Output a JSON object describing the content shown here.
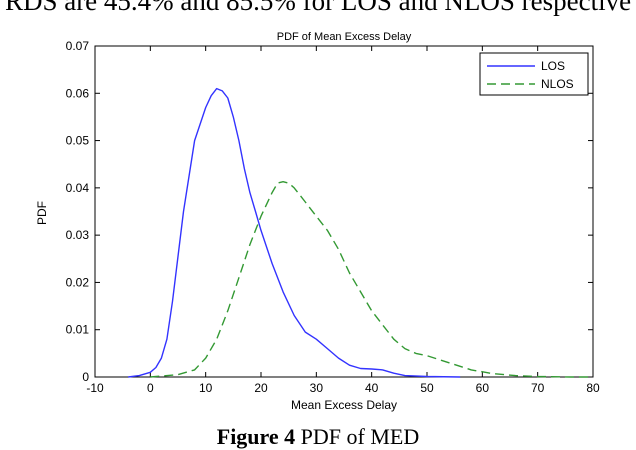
{
  "header_fragment": "RDS are 45.4% and 85.5% for LOS and NLOS respective",
  "caption": {
    "label": "Figure 4",
    "text": " PDF of MED"
  },
  "colors": {
    "los": "#3333ff",
    "nlos": "#339933",
    "axis": "#000000"
  },
  "chart_data": {
    "type": "line",
    "title": "PDF of Mean Excess Delay",
    "xlabel": "Mean Excess Delay",
    "ylabel": "PDF",
    "xlim": [
      -10,
      80
    ],
    "ylim": [
      0,
      0.07
    ],
    "x_ticks": [
      "-10",
      "0",
      "10",
      "20",
      "30",
      "40",
      "50",
      "60",
      "70",
      "80"
    ],
    "y_ticks": [
      "0",
      "0.01",
      "0.02",
      "0.03",
      "0.04",
      "0.05",
      "0.06",
      "0.07"
    ],
    "legend_position": "top-right",
    "series": [
      {
        "name": "LOS",
        "style": "solid",
        "color": "#3333ff",
        "x": [
          -4,
          -2,
          0,
          1,
          2,
          3,
          4,
          6,
          8,
          10,
          11,
          12,
          13,
          14,
          15,
          16,
          17,
          18,
          19,
          20,
          22,
          24,
          26,
          28,
          30,
          32,
          34,
          36,
          38,
          40,
          42,
          44,
          46,
          50,
          56
        ],
        "y": [
          0,
          0.0003,
          0.001,
          0.002,
          0.004,
          0.008,
          0.016,
          0.035,
          0.05,
          0.057,
          0.0595,
          0.061,
          0.0605,
          0.059,
          0.055,
          0.05,
          0.044,
          0.039,
          0.035,
          0.031,
          0.024,
          0.018,
          0.013,
          0.0095,
          0.008,
          0.006,
          0.004,
          0.0025,
          0.0018,
          0.0017,
          0.0015,
          0.0008,
          0.0003,
          0.0001,
          0
        ]
      },
      {
        "name": "NLOS",
        "style": "dashed",
        "color": "#339933",
        "x": [
          0,
          5,
          8,
          10,
          12,
          14,
          16,
          18,
          20,
          22,
          23,
          24,
          25,
          26,
          28,
          30,
          32,
          34,
          36,
          38,
          40,
          42,
          44,
          46,
          48,
          50,
          54,
          58,
          62,
          66,
          70,
          76,
          80
        ],
        "y": [
          0,
          0.0005,
          0.0015,
          0.004,
          0.008,
          0.014,
          0.021,
          0.028,
          0.034,
          0.039,
          0.041,
          0.0413,
          0.041,
          0.04,
          0.037,
          0.034,
          0.031,
          0.027,
          0.022,
          0.018,
          0.014,
          0.011,
          0.008,
          0.006,
          0.005,
          0.0045,
          0.003,
          0.0015,
          0.0007,
          0.0003,
          0.0001,
          0,
          0
        ]
      }
    ]
  }
}
